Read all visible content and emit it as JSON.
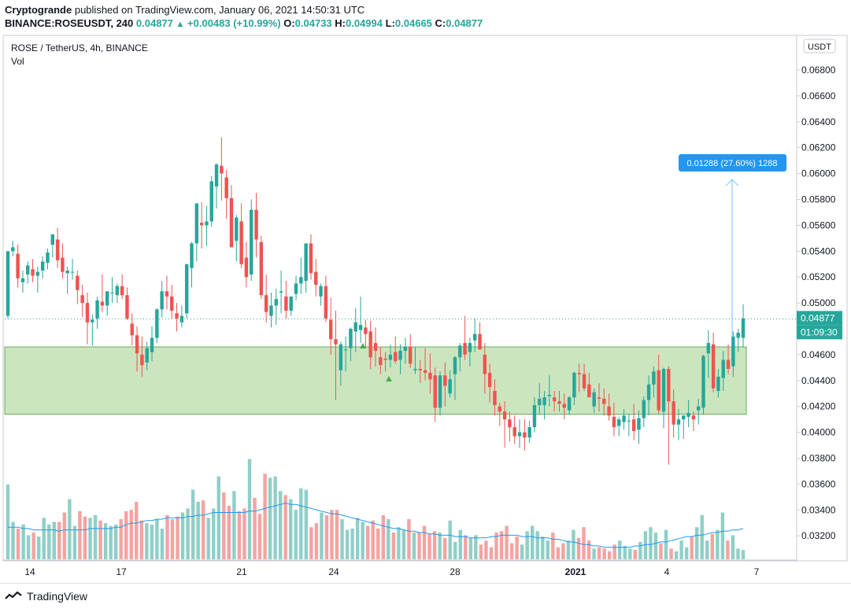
{
  "header": {
    "publisher": "Cryptogrande",
    "published_text": " published on TradingView.com, January 06, 2021 14:50:31 UTC",
    "symbol_interval": "BINANCE:ROSEUSDT, 240",
    "last": "0.04877",
    "change": "+0.00483 (+10.99%)",
    "o_label": "O:",
    "o_value": "0.04733",
    "h_label": "H:",
    "h_value": "0.04994",
    "l_label": "L:",
    "l_value": "0.04665",
    "c_label": "C:",
    "c_value": "0.04877"
  },
  "legend": {
    "title": "ROSE / TetherUS, 4h, BINANCE",
    "volume": "Vol"
  },
  "price_axis": {
    "currency": "USDT",
    "current_price": "0.04877",
    "countdown": "01:09:30"
  },
  "measure_label": "0.01288 (27.60%) 1288",
  "footer": {
    "brand": "TradingView"
  },
  "colors": {
    "up": "#26a69a",
    "down": "#ef5350",
    "up_volume": "#8fcfc7",
    "down_volume": "#f4a3a2",
    "zone_fill": "#c9e4bc",
    "zone_border": "#5bab4f",
    "volume_ma": "#2196f3",
    "measure": "#2196f3"
  },
  "chart_data": {
    "type": "candlestick",
    "x_ticks": [
      "14",
      "17",
      "21",
      "24",
      "28",
      "2021",
      "4",
      "7"
    ],
    "y_ticks": [
      "0.06800",
      "0.06600",
      "0.06400",
      "0.06200",
      "0.06000",
      "0.05800",
      "0.05600",
      "0.05400",
      "0.05200",
      "0.05000",
      "0.04600",
      "0.04400",
      "0.04200",
      "0.04000",
      "0.03800",
      "0.03600",
      "0.03400",
      "0.03200"
    ],
    "ylim": [
      0.03,
      0.071
    ],
    "support_zone": [
      0.0414,
      0.0466
    ],
    "measure": {
      "from": 0.04665,
      "to": 0.05953
    },
    "candles_ohlc": [
      [
        0.049,
        0.0505,
        0.0488,
        0.054
      ],
      [
        0.054,
        0.0548,
        0.0536,
        0.0543
      ],
      [
        0.0538,
        0.0545,
        0.0512,
        0.0519
      ],
      [
        0.0516,
        0.0525,
        0.0508,
        0.0519
      ],
      [
        0.0522,
        0.0532,
        0.0515,
        0.0529
      ],
      [
        0.0526,
        0.0534,
        0.0516,
        0.0521
      ],
      [
        0.0521,
        0.0528,
        0.0508,
        0.0524
      ],
      [
        0.0525,
        0.0536,
        0.0519,
        0.0532
      ],
      [
        0.0531,
        0.0542,
        0.0526,
        0.0539
      ],
      [
        0.0545,
        0.0553,
        0.0535,
        0.0553
      ],
      [
        0.0549,
        0.0558,
        0.0527,
        0.0533
      ],
      [
        0.0535,
        0.0546,
        0.0519,
        0.0524
      ],
      [
        0.0523,
        0.0528,
        0.0507,
        0.0525
      ],
      [
        0.0524,
        0.0534,
        0.0518,
        0.0524
      ],
      [
        0.0521,
        0.0525,
        0.0499,
        0.051
      ],
      [
        0.0506,
        0.0514,
        0.0489,
        0.05
      ],
      [
        0.05,
        0.0508,
        0.0468,
        0.0485
      ],
      [
        0.0485,
        0.0491,
        0.0467,
        0.0487
      ],
      [
        0.0488,
        0.0505,
        0.048,
        0.0502
      ],
      [
        0.0501,
        0.0522,
        0.0493,
        0.0498
      ],
      [
        0.0498,
        0.0507,
        0.049,
        0.0509
      ],
      [
        0.0508,
        0.052,
        0.05,
        0.0508
      ],
      [
        0.0506,
        0.0515,
        0.05,
        0.0513
      ],
      [
        0.0513,
        0.0522,
        0.0503,
        0.0506
      ],
      [
        0.0506,
        0.0512,
        0.0487,
        0.0488
      ],
      [
        0.0484,
        0.0492,
        0.0467,
        0.0475
      ],
      [
        0.0475,
        0.0482,
        0.0447,
        0.0461
      ],
      [
        0.046,
        0.0474,
        0.0443,
        0.0452
      ],
      [
        0.0454,
        0.047,
        0.0448,
        0.0465
      ],
      [
        0.0462,
        0.0482,
        0.0455,
        0.0473
      ],
      [
        0.0473,
        0.0496,
        0.0469,
        0.0495
      ],
      [
        0.0495,
        0.0517,
        0.0489,
        0.0509
      ],
      [
        0.0509,
        0.0521,
        0.0495,
        0.0505
      ],
      [
        0.0505,
        0.0514,
        0.0488,
        0.0494
      ],
      [
        0.0492,
        0.05,
        0.0478,
        0.0488
      ],
      [
        0.0485,
        0.0498,
        0.0481,
        0.049
      ],
      [
        0.0492,
        0.0509,
        0.0488,
        0.053
      ],
      [
        0.0527,
        0.0547,
        0.0512,
        0.0546
      ],
      [
        0.0546,
        0.0576,
        0.0532,
        0.0577
      ],
      [
        0.0562,
        0.0578,
        0.0542,
        0.056
      ],
      [
        0.056,
        0.0575,
        0.0544,
        0.0563
      ],
      [
        0.0563,
        0.0598,
        0.0559,
        0.0594
      ],
      [
        0.059,
        0.0608,
        0.0573,
        0.0607
      ],
      [
        0.0606,
        0.0628,
        0.0579,
        0.06
      ],
      [
        0.0597,
        0.0603,
        0.0565,
        0.0581
      ],
      [
        0.0581,
        0.0591,
        0.0544,
        0.0543
      ],
      [
        0.0548,
        0.0568,
        0.0532,
        0.0566
      ],
      [
        0.0563,
        0.0577,
        0.0527,
        0.053
      ],
      [
        0.0535,
        0.0547,
        0.0512,
        0.052
      ],
      [
        0.0522,
        0.058,
        0.0517,
        0.0572
      ],
      [
        0.0572,
        0.0585,
        0.0535,
        0.0549
      ],
      [
        0.0547,
        0.0552,
        0.0503,
        0.0506
      ],
      [
        0.0506,
        0.0522,
        0.0485,
        0.0493
      ],
      [
        0.049,
        0.0508,
        0.0481,
        0.0498
      ],
      [
        0.0498,
        0.0511,
        0.0483,
        0.0503
      ],
      [
        0.0508,
        0.0525,
        0.0492,
        0.0509
      ],
      [
        0.0505,
        0.0517,
        0.0488,
        0.0494
      ],
      [
        0.0494,
        0.0504,
        0.049,
        0.0505
      ],
      [
        0.0507,
        0.0521,
        0.0502,
        0.0515
      ],
      [
        0.0515,
        0.0535,
        0.0507,
        0.052
      ],
      [
        0.0517,
        0.0546,
        0.0508,
        0.0546
      ],
      [
        0.0546,
        0.0553,
        0.0518,
        0.0523
      ],
      [
        0.0524,
        0.0534,
        0.0505,
        0.0514
      ],
      [
        0.0505,
        0.0515,
        0.0498,
        0.0513
      ],
      [
        0.0513,
        0.0521,
        0.0485,
        0.0488
      ],
      [
        0.0487,
        0.0504,
        0.046,
        0.0472
      ],
      [
        0.0472,
        0.0494,
        0.0425,
        0.0468
      ],
      [
        0.0448,
        0.047,
        0.0436,
        0.0468
      ],
      [
        0.0464,
        0.0474,
        0.0447,
        0.0464
      ],
      [
        0.0465,
        0.0481,
        0.0455,
        0.048
      ],
      [
        0.0478,
        0.0496,
        0.0462,
        0.0485
      ],
      [
        0.0479,
        0.0505,
        0.0469,
        0.0483
      ],
      [
        0.0481,
        0.0487,
        0.0465,
        0.0476
      ],
      [
        0.0478,
        0.0486,
        0.0449,
        0.0458
      ],
      [
        0.0469,
        0.0481,
        0.0451,
        0.0463
      ],
      [
        0.0458,
        0.0466,
        0.0445,
        0.0452
      ],
      [
        0.0457,
        0.0462,
        0.0447,
        0.0456
      ],
      [
        0.0456,
        0.0468,
        0.045,
        0.046
      ],
      [
        0.0462,
        0.0474,
        0.0453,
        0.0455
      ],
      [
        0.0456,
        0.0468,
        0.0445,
        0.0463
      ],
      [
        0.0463,
        0.0473,
        0.0453,
        0.0466
      ],
      [
        0.0466,
        0.0476,
        0.045,
        0.0453
      ],
      [
        0.0448,
        0.0466,
        0.0445,
        0.0449
      ],
      [
        0.0449,
        0.0456,
        0.0438,
        0.0448
      ],
      [
        0.0448,
        0.0465,
        0.044,
        0.0446
      ],
      [
        0.0446,
        0.0461,
        0.043,
        0.0441
      ],
      [
        0.0444,
        0.045,
        0.0408,
        0.0419
      ],
      [
        0.0419,
        0.0447,
        0.0413,
        0.0444
      ],
      [
        0.0444,
        0.0454,
        0.042,
        0.0436
      ],
      [
        0.043,
        0.0448,
        0.0427,
        0.0441
      ],
      [
        0.0445,
        0.0459,
        0.0425,
        0.0458
      ],
      [
        0.0458,
        0.0469,
        0.0447,
        0.0467
      ],
      [
        0.0469,
        0.049,
        0.0456,
        0.046
      ],
      [
        0.0462,
        0.0473,
        0.0451,
        0.0469
      ],
      [
        0.0471,
        0.0488,
        0.0462,
        0.0476
      ],
      [
        0.0476,
        0.0485,
        0.0465,
        0.0464
      ],
      [
        0.046,
        0.0469,
        0.043,
        0.0445
      ],
      [
        0.0446,
        0.0453,
        0.0423,
        0.0435
      ],
      [
        0.0432,
        0.0441,
        0.0413,
        0.0421
      ],
      [
        0.042,
        0.0423,
        0.0405,
        0.0416
      ],
      [
        0.0416,
        0.0424,
        0.0388,
        0.041
      ],
      [
        0.041,
        0.0416,
        0.0393,
        0.0404
      ],
      [
        0.0404,
        0.0413,
        0.0391,
        0.0397
      ],
      [
        0.0397,
        0.041,
        0.0388,
        0.04
      ],
      [
        0.04,
        0.041,
        0.0386,
        0.0396
      ],
      [
        0.0396,
        0.0409,
        0.0392,
        0.0404
      ],
      [
        0.0404,
        0.0427,
        0.04,
        0.0421
      ],
      [
        0.0421,
        0.0438,
        0.0414,
        0.0426
      ],
      [
        0.0421,
        0.0432,
        0.041,
        0.0427
      ],
      [
        0.0428,
        0.0444,
        0.042,
        0.0429
      ],
      [
        0.0427,
        0.0432,
        0.0416,
        0.0424
      ],
      [
        0.0424,
        0.0432,
        0.0416,
        0.0422
      ],
      [
        0.0422,
        0.043,
        0.041,
        0.0419
      ],
      [
        0.0417,
        0.0428,
        0.0414,
        0.0427
      ],
      [
        0.0427,
        0.0447,
        0.0421,
        0.0446
      ],
      [
        0.0446,
        0.0453,
        0.0431,
        0.0445
      ],
      [
        0.0445,
        0.0453,
        0.0432,
        0.0434
      ],
      [
        0.0437,
        0.0446,
        0.0428,
        0.0427
      ],
      [
        0.042,
        0.0434,
        0.0415,
        0.0431
      ],
      [
        0.0427,
        0.0438,
        0.0416,
        0.0426
      ],
      [
        0.0426,
        0.0434,
        0.0413,
        0.0422
      ],
      [
        0.042,
        0.043,
        0.0409,
        0.0413
      ],
      [
        0.0412,
        0.0423,
        0.0397,
        0.0404
      ],
      [
        0.0405,
        0.0412,
        0.0397,
        0.041
      ],
      [
        0.0408,
        0.0418,
        0.0402,
        0.0413
      ],
      [
        0.0409,
        0.0414,
        0.0397,
        0.0409
      ],
      [
        0.041,
        0.0422,
        0.0394,
        0.0401
      ],
      [
        0.0402,
        0.0417,
        0.0391,
        0.0411
      ],
      [
        0.0411,
        0.0428,
        0.0404,
        0.0425
      ],
      [
        0.0425,
        0.0444,
        0.0413,
        0.0437
      ],
      [
        0.0437,
        0.0451,
        0.0427,
        0.0447
      ],
      [
        0.0448,
        0.046,
        0.0414,
        0.0417
      ],
      [
        0.0416,
        0.045,
        0.0403,
        0.0449
      ],
      [
        0.0449,
        0.0451,
        0.0375,
        0.0424
      ],
      [
        0.0424,
        0.0433,
        0.0396,
        0.0406
      ],
      [
        0.0406,
        0.0418,
        0.0394,
        0.041
      ],
      [
        0.041,
        0.0413,
        0.0395,
        0.0413
      ],
      [
        0.0412,
        0.0425,
        0.0404,
        0.0415
      ],
      [
        0.0413,
        0.0416,
        0.0401,
        0.041
      ],
      [
        0.0417,
        0.0426,
        0.0406,
        0.042
      ],
      [
        0.0419,
        0.046,
        0.0414,
        0.0459
      ],
      [
        0.0461,
        0.0479,
        0.0442,
        0.0469
      ],
      [
        0.0468,
        0.0477,
        0.0431,
        0.0434
      ],
      [
        0.0432,
        0.0449,
        0.0427,
        0.0443
      ],
      [
        0.0442,
        0.0463,
        0.0432,
        0.0456
      ],
      [
        0.0456,
        0.0468,
        0.0445,
        0.0449
      ],
      [
        0.0451,
        0.0478,
        0.0443,
        0.0474
      ],
      [
        0.0473,
        0.048,
        0.0462,
        0.0477
      ],
      [
        0.0473,
        0.0499,
        0.0466,
        0.0488
      ]
    ],
    "volume": [
      0.56,
      0.28,
      0.23,
      0.26,
      0.18,
      0.2,
      0.17,
      0.31,
      0.26,
      0.28,
      0.28,
      0.35,
      0.45,
      0.25,
      0.36,
      0.32,
      0.31,
      0.33,
      0.29,
      0.27,
      0.25,
      0.26,
      0.3,
      0.36,
      0.37,
      0.43,
      0.29,
      0.27,
      0.26,
      0.3,
      0.23,
      0.33,
      0.3,
      0.32,
      0.35,
      0.38,
      0.52,
      0.43,
      0.44,
      0.31,
      0.38,
      0.62,
      0.5,
      0.4,
      0.51,
      0.36,
      0.38,
      0.75,
      0.46,
      0.34,
      0.64,
      0.61,
      0.62,
      0.51,
      0.48,
      0.45,
      0.37,
      0.53,
      0.52,
      0.24,
      0.27,
      0.35,
      0.33,
      0.37,
      0.37,
      0.3,
      0.22,
      0.23,
      0.31,
      0.28,
      0.25,
      0.29,
      0.23,
      0.33,
      0.3,
      0.2,
      0.24,
      0.22,
      0.3,
      0.2,
      0.2,
      0.25,
      0.19,
      0.21,
      0.2,
      0.16,
      0.29,
      0.13,
      0.22,
      0.18,
      0.16,
      0.18,
      0.11,
      0.14,
      0.09,
      0.2,
      0.21,
      0.25,
      0.12,
      0.17,
      0.11,
      0.21,
      0.25,
      0.21,
      0.17,
      0.14,
      0.2,
      0.09,
      0.12,
      0.14,
      0.22,
      0.16,
      0.24,
      0.14,
      0.08,
      0.09,
      0.08,
      0.06,
      0.11,
      0.14,
      0.1,
      0.08,
      0.07,
      0.13,
      0.21,
      0.24,
      0.2,
      0.12,
      0.22,
      0.08,
      0.06,
      0.14,
      0.09,
      0.17,
      0.24,
      0.33,
      0.14,
      0.19,
      0.22,
      0.35,
      0.14,
      0.18,
      0.08,
      0.07
    ],
    "volume_ma": [
      0.24,
      0.24,
      0.24,
      0.23,
      0.23,
      0.22,
      0.22,
      0.22,
      0.22,
      0.22,
      0.21,
      0.22,
      0.22,
      0.22,
      0.22,
      0.22,
      0.23,
      0.23,
      0.23,
      0.23,
      0.23,
      0.24,
      0.24,
      0.26,
      0.27,
      0.27,
      0.28,
      0.29,
      0.29,
      0.3,
      0.3,
      0.31,
      0.31,
      0.31,
      0.31,
      0.32,
      0.32,
      0.33,
      0.33,
      0.34,
      0.35,
      0.35,
      0.35,
      0.35,
      0.35,
      0.35,
      0.35,
      0.36,
      0.36,
      0.37,
      0.38,
      0.39,
      0.4,
      0.41,
      0.42,
      0.41,
      0.41,
      0.4,
      0.39,
      0.38,
      0.37,
      0.36,
      0.35,
      0.34,
      0.34,
      0.33,
      0.32,
      0.31,
      0.3,
      0.29,
      0.28,
      0.27,
      0.26,
      0.25,
      0.24,
      0.23,
      0.23,
      0.22,
      0.21,
      0.21,
      0.2,
      0.2,
      0.19,
      0.19,
      0.18,
      0.18,
      0.18,
      0.17,
      0.17,
      0.17,
      0.16,
      0.16,
      0.16,
      0.16,
      0.17,
      0.17,
      0.18,
      0.18,
      0.18,
      0.18,
      0.17,
      0.17,
      0.17,
      0.16,
      0.16,
      0.16,
      0.15,
      0.15,
      0.14,
      0.13,
      0.13,
      0.12,
      0.11,
      0.11,
      0.1,
      0.1,
      0.09,
      0.09,
      0.09,
      0.09,
      0.09,
      0.09,
      0.1,
      0.1,
      0.11,
      0.11,
      0.12,
      0.13,
      0.13,
      0.14,
      0.15,
      0.16,
      0.17,
      0.17,
      0.18,
      0.18,
      0.19,
      0.2,
      0.2,
      0.21,
      0.21,
      0.22,
      0.22,
      0.23
    ]
  }
}
